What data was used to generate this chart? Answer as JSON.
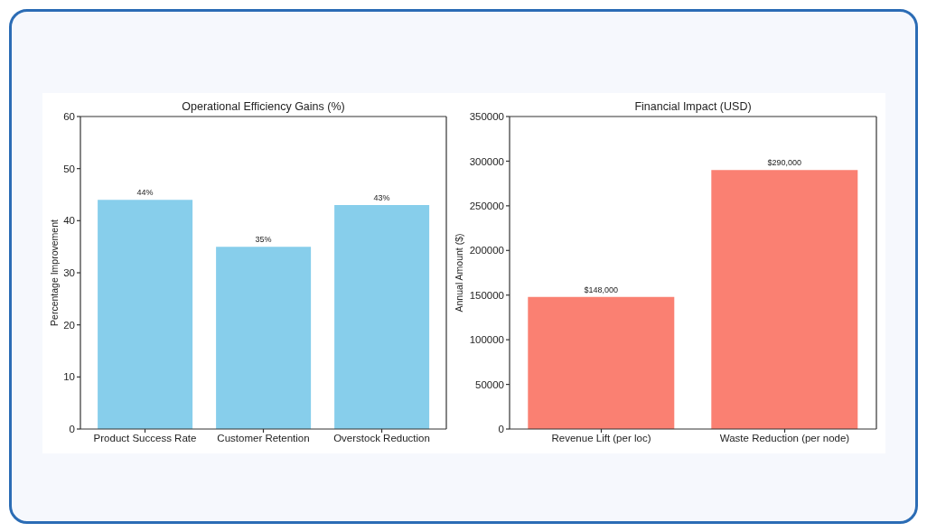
{
  "chart_data": [
    {
      "type": "bar",
      "title": "Operational Efficiency Gains (%)",
      "ylabel": "Percentage Improvement",
      "categories": [
        "Product Success Rate",
        "Customer Retention",
        "Overstock Reduction"
      ],
      "values": [
        44,
        35,
        43
      ],
      "color": "#87ceeb",
      "value_labels": [
        "44%",
        "35%",
        "43%"
      ],
      "ylim": [
        0,
        60
      ],
      "yticks": [
        0,
        10,
        20,
        30,
        40,
        50,
        60
      ]
    },
    {
      "type": "bar",
      "title": "Financial Impact (USD)",
      "ylabel": "Annual Amount ($)",
      "categories": [
        "Revenue Lift (per loc)",
        "Waste Reduction (per node)"
      ],
      "values": [
        148000,
        290000
      ],
      "color": "#fa8072",
      "value_labels": [
        "$148,000",
        "$290,000"
      ],
      "ylim": [
        0,
        350000
      ],
      "yticks": [
        0,
        50000,
        100000,
        150000,
        200000,
        250000,
        300000,
        350000
      ]
    }
  ]
}
